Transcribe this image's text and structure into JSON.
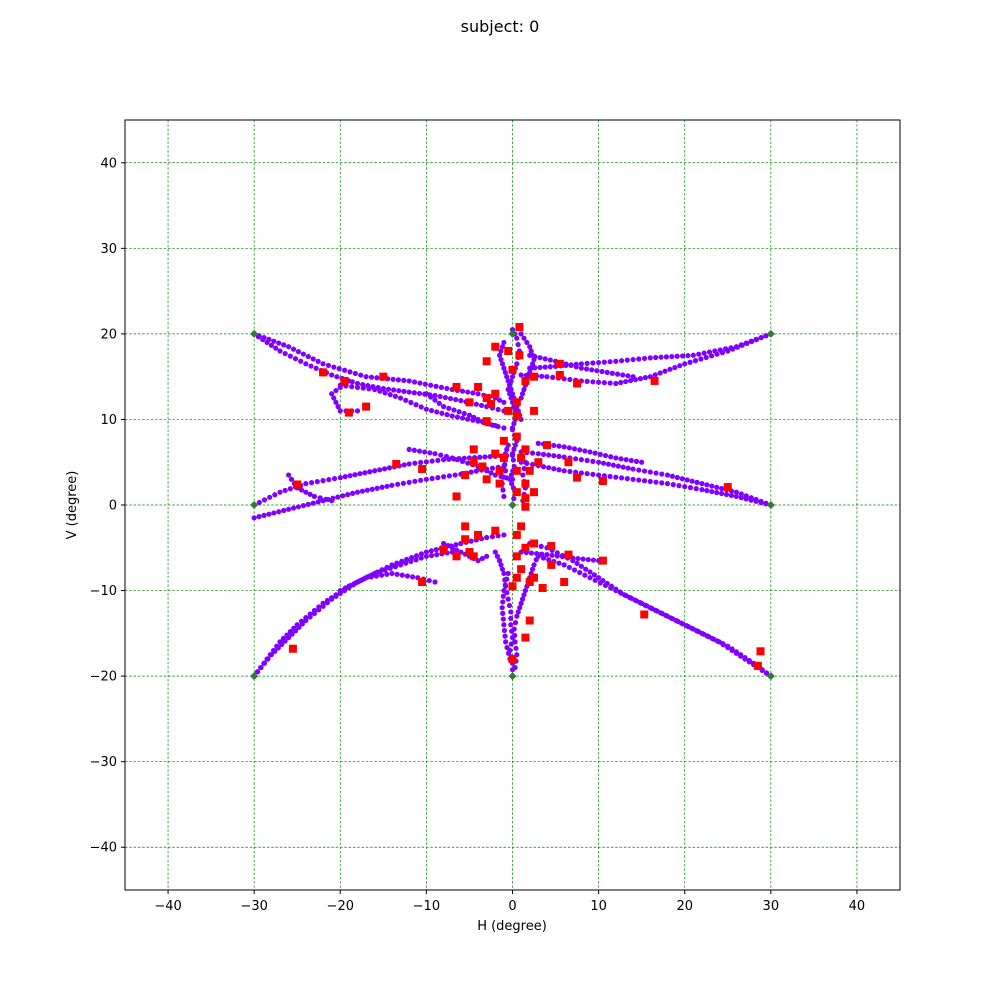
{
  "figure": {
    "title": "subject: 0"
  },
  "chart_data": {
    "type": "scatter",
    "title": "subject: 0",
    "xlabel": "H (degree)",
    "ylabel": "V (degree)",
    "xlim": [
      -45,
      45
    ],
    "ylim": [
      -45,
      45
    ],
    "xticks": [
      -40,
      -30,
      -20,
      -10,
      0,
      10,
      20,
      30,
      40
    ],
    "yticks": [
      -40,
      -30,
      -20,
      -10,
      0,
      10,
      20,
      30,
      40
    ],
    "grid": true,
    "grid_color": "#008000",
    "legend": "none",
    "colors": {
      "gaze": "#8000ff",
      "fixation": "#ff0000",
      "target": "#2e7d32"
    },
    "targets": [
      [
        -30,
        20
      ],
      [
        0,
        20
      ],
      [
        30,
        20
      ],
      [
        -30,
        0
      ],
      [
        0,
        0
      ],
      [
        30,
        0
      ],
      [
        -30,
        -20
      ],
      [
        0,
        -20
      ],
      [
        30,
        -20
      ]
    ],
    "gaze_paths": [
      [
        [
          -30,
          20
        ],
        [
          -26,
          18.5
        ],
        [
          -22,
          16.5
        ],
        [
          -17,
          15
        ],
        [
          -12,
          14.5
        ],
        [
          -7,
          13.5
        ],
        [
          -4,
          13
        ],
        [
          -2,
          12.5
        ],
        [
          -1,
          12
        ]
      ],
      [
        [
          -30,
          20
        ],
        [
          -27,
          18
        ],
        [
          -24,
          16.5
        ],
        [
          -21,
          15.2
        ],
        [
          -18,
          14.2
        ],
        [
          -15,
          13.6
        ],
        [
          -12,
          13.2
        ],
        [
          -9,
          12.8
        ],
        [
          -6,
          12.2
        ],
        [
          -3,
          11.5
        ],
        [
          -1,
          11
        ]
      ],
      [
        [
          -19,
          14.5
        ],
        [
          -21,
          13
        ],
        [
          -20,
          11
        ],
        [
          -18,
          11
        ]
      ],
      [
        [
          -10,
          13
        ],
        [
          -8,
          11.5
        ],
        [
          -5,
          10.5
        ],
        [
          -3,
          9.5
        ],
        [
          -1,
          9
        ]
      ],
      [
        [
          -20,
          14
        ],
        [
          -16,
          13.5
        ],
        [
          -13,
          12.5
        ],
        [
          -10,
          11.2
        ],
        [
          -7,
          10.4
        ],
        [
          -4,
          9.8
        ],
        [
          -2,
          9.3
        ]
      ],
      [
        [
          30,
          20
        ],
        [
          26,
          18.5
        ],
        [
          21,
          17.5
        ],
        [
          16,
          17.2
        ],
        [
          12,
          16.8
        ],
        [
          8,
          16.5
        ],
        [
          5,
          16.2
        ],
        [
          2,
          16
        ]
      ],
      [
        [
          30,
          20
        ],
        [
          25,
          18
        ],
        [
          20,
          16.5
        ],
        [
          16,
          15
        ],
        [
          12,
          14.2
        ],
        [
          8,
          14.5
        ],
        [
          4,
          15
        ],
        [
          1,
          15.2
        ]
      ],
      [
        [
          2,
          17.5
        ],
        [
          5,
          16.8
        ],
        [
          8,
          16
        ],
        [
          11,
          15.5
        ],
        [
          14,
          15
        ]
      ],
      [
        [
          0,
          20.5
        ],
        [
          0.5,
          19.5
        ],
        [
          0.8,
          18
        ],
        [
          0.5,
          16.5
        ],
        [
          0,
          15
        ],
        [
          -0.5,
          13.5
        ],
        [
          0,
          12
        ],
        [
          0.5,
          10.5
        ],
        [
          0,
          9
        ]
      ],
      [
        [
          -1,
          19
        ],
        [
          -1.5,
          17.5
        ],
        [
          -1,
          16
        ],
        [
          -0.5,
          14.5
        ],
        [
          0,
          13
        ],
        [
          0.5,
          11.5
        ],
        [
          1,
          10
        ]
      ],
      [
        [
          1,
          20
        ],
        [
          2,
          18.5
        ],
        [
          2.5,
          17
        ],
        [
          2,
          15.5
        ],
        [
          1.5,
          14
        ],
        [
          1,
          12.5
        ]
      ],
      [
        [
          -30,
          0
        ],
        [
          -27,
          1.5
        ],
        [
          -24,
          2.5
        ],
        [
          -20,
          3.2
        ],
        [
          -16,
          4
        ],
        [
          -12,
          4.8
        ],
        [
          -8,
          5.3
        ],
        [
          -5,
          5.5
        ],
        [
          -2,
          5.7
        ],
        [
          0,
          5.8
        ]
      ],
      [
        [
          -30,
          -1.5
        ],
        [
          -26,
          -0.5
        ],
        [
          -22,
          0.5
        ],
        [
          -18,
          1.5
        ],
        [
          -14,
          2.3
        ],
        [
          -10,
          3
        ],
        [
          -6,
          3.6
        ],
        [
          -3,
          4.2
        ],
        [
          -1,
          4.5
        ]
      ],
      [
        [
          -26,
          3.5
        ],
        [
          -25,
          2
        ],
        [
          -23,
          1
        ],
        [
          -21,
          0.5
        ]
      ],
      [
        [
          -12,
          6.5
        ],
        [
          -9,
          6
        ],
        [
          -7,
          5.5
        ],
        [
          -4,
          4.5
        ],
        [
          -2,
          3.5
        ],
        [
          0,
          3
        ]
      ],
      [
        [
          30,
          0
        ],
        [
          26,
          1.5
        ],
        [
          22,
          2.5
        ],
        [
          18,
          3.5
        ],
        [
          14,
          4.2
        ],
        [
          10,
          5
        ],
        [
          6,
          5.6
        ],
        [
          3,
          6
        ],
        [
          1,
          6.2
        ]
      ],
      [
        [
          30,
          0
        ],
        [
          26,
          1
        ],
        [
          22,
          1.8
        ],
        [
          18,
          2.5
        ],
        [
          14,
          3
        ],
        [
          10,
          3.5
        ],
        [
          6,
          4
        ],
        [
          3,
          4.6
        ],
        [
          1,
          5
        ]
      ],
      [
        [
          15,
          5
        ],
        [
          12,
          5.5
        ],
        [
          9,
          6.2
        ],
        [
          6,
          6.8
        ],
        [
          3,
          7.2
        ]
      ],
      [
        [
          0,
          0
        ],
        [
          0.3,
          1.5
        ],
        [
          -0.3,
          3
        ],
        [
          0.2,
          4.5
        ],
        [
          0,
          6
        ],
        [
          0.5,
          7.5
        ],
        [
          0,
          8.8
        ]
      ],
      [
        [
          -1,
          1
        ],
        [
          -1.2,
          2.5
        ],
        [
          -0.8,
          4
        ],
        [
          -1,
          5.5
        ],
        [
          -0.5,
          7
        ]
      ],
      [
        [
          1.2,
          0.5
        ],
        [
          1.5,
          2
        ],
        [
          1.2,
          3.5
        ],
        [
          1.5,
          5
        ]
      ],
      [
        [
          -30,
          -20
        ],
        [
          -28,
          -17.5
        ],
        [
          -26,
          -15.5
        ],
        [
          -24,
          -13.5
        ],
        [
          -21,
          -11
        ],
        [
          -18,
          -9
        ],
        [
          -14,
          -7
        ],
        [
          -10,
          -5.5
        ],
        [
          -6,
          -4.5
        ],
        [
          -3,
          -3.8
        ],
        [
          -1,
          -3.5
        ]
      ],
      [
        [
          -30,
          -20
        ],
        [
          -28.5,
          -18
        ],
        [
          -27,
          -16
        ],
        [
          -25,
          -14
        ],
        [
          -22,
          -11.5
        ],
        [
          -19,
          -9.5
        ],
        [
          -16,
          -8
        ],
        [
          -13,
          -7
        ],
        [
          -10,
          -6
        ],
        [
          -7,
          -5.5
        ]
      ],
      [
        [
          -20,
          -10
        ],
        [
          -17,
          -8.5
        ],
        [
          -14,
          -8
        ],
        [
          -11,
          -8.5
        ],
        [
          -9,
          -9
        ]
      ],
      [
        [
          -8,
          -4.5
        ],
        [
          -6,
          -5.5
        ],
        [
          -4,
          -6.5
        ],
        [
          -3,
          -6
        ]
      ],
      [
        [
          30,
          -20
        ],
        [
          28,
          -18.5
        ],
        [
          25,
          -16.5
        ],
        [
          22,
          -15
        ],
        [
          19,
          -13.5
        ],
        [
          16,
          -12
        ],
        [
          13,
          -10.5
        ],
        [
          10,
          -8.5
        ],
        [
          7,
          -6.5
        ],
        [
          4,
          -5
        ],
        [
          2,
          -4.5
        ]
      ],
      [
        [
          30,
          -20
        ],
        [
          27,
          -18
        ],
        [
          24,
          -16
        ],
        [
          21,
          -14.5
        ],
        [
          18,
          -13
        ],
        [
          15,
          -11.5
        ],
        [
          12,
          -10
        ],
        [
          9,
          -8.5
        ],
        [
          6,
          -7
        ],
        [
          3,
          -6
        ]
      ],
      [
        [
          10,
          -6.5
        ],
        [
          7,
          -6.2
        ],
        [
          4,
          -5.8
        ],
        [
          1,
          -5.5
        ]
      ],
      [
        [
          0,
          -20
        ],
        [
          0,
          -18.5
        ],
        [
          -0.3,
          -17
        ],
        [
          0,
          -15.5
        ],
        [
          -0.2,
          -14
        ],
        [
          -0.2,
          -12.5
        ],
        [
          -0.5,
          -11
        ],
        [
          -0.8,
          -9.5
        ],
        [
          -1,
          -8
        ],
        [
          -1.5,
          -6.5
        ],
        [
          -2,
          -5.5
        ]
      ],
      [
        [
          0.3,
          -19
        ],
        [
          0.5,
          -17.5
        ],
        [
          0.3,
          -16
        ],
        [
          0.2,
          -14.5
        ],
        [
          0.5,
          -13
        ],
        [
          1,
          -11.5
        ],
        [
          1.5,
          -10
        ],
        [
          2,
          -8.5
        ],
        [
          2.5,
          -7
        ],
        [
          3,
          -5.8
        ]
      ],
      [
        [
          -0.3,
          -18
        ],
        [
          -0.8,
          -16
        ],
        [
          -1,
          -14
        ],
        [
          -1.2,
          -12
        ],
        [
          -1,
          -10
        ],
        [
          -0.5,
          -8
        ]
      ]
    ],
    "fixations": [
      [
        0.8,
        20.8
      ],
      [
        -2,
        18.5
      ],
      [
        -0.5,
        18
      ],
      [
        0.8,
        17.5
      ],
      [
        -3,
        16.8
      ],
      [
        5.5,
        16.5
      ],
      [
        0,
        15.8
      ],
      [
        5.5,
        15.2
      ],
      [
        2.5,
        15
      ],
      [
        -15,
        15
      ],
      [
        -22,
        15.5
      ],
      [
        16.5,
        14.5
      ],
      [
        -19.5,
        14.5
      ],
      [
        -4,
        13.8
      ],
      [
        -2,
        13
      ],
      [
        1.5,
        14.5
      ],
      [
        7.5,
        14.2
      ],
      [
        -3,
        12.5
      ],
      [
        -5,
        12
      ],
      [
        -2.5,
        11.8
      ],
      [
        -6.5,
        13.8
      ],
      [
        -17,
        11.5
      ],
      [
        -19,
        10.8
      ],
      [
        0.5,
        12
      ],
      [
        -0.5,
        11
      ],
      [
        0.5,
        10.5
      ],
      [
        2.5,
        11
      ],
      [
        -3,
        9.8
      ],
      [
        0.5,
        8
      ],
      [
        -1,
        7.5
      ],
      [
        -4.5,
        6.5
      ],
      [
        4,
        7
      ],
      [
        1.5,
        6.5
      ],
      [
        -2,
        6
      ],
      [
        -1,
        5.5
      ],
      [
        1,
        5.5
      ],
      [
        -4.5,
        5
      ],
      [
        6.5,
        5
      ],
      [
        3,
        5
      ],
      [
        -3.5,
        4.5
      ],
      [
        -1.5,
        4
      ],
      [
        0.5,
        4
      ],
      [
        2,
        4
      ],
      [
        -5.5,
        3.5
      ],
      [
        -3,
        3
      ],
      [
        -1.5,
        2.5
      ],
      [
        1.5,
        2.5
      ],
      [
        -13.5,
        4.8
      ],
      [
        -10.5,
        4.2
      ],
      [
        7.5,
        3.2
      ],
      [
        10.5,
        2.8
      ],
      [
        -25,
        2.4
      ],
      [
        25,
        2.1
      ],
      [
        0.5,
        1.5
      ],
      [
        2.5,
        1.5
      ],
      [
        -6.5,
        1
      ],
      [
        1.5,
        0.8
      ],
      [
        1.5,
        -0.2
      ],
      [
        1,
        -2.5
      ],
      [
        -5.5,
        -2.5
      ],
      [
        -4,
        -3.5
      ],
      [
        -2,
        -3
      ],
      [
        0.5,
        -3.5
      ],
      [
        -5.5,
        -4
      ],
      [
        2.5,
        -4.5
      ],
      [
        4.5,
        -4.8
      ],
      [
        -8,
        -5.2
      ],
      [
        -5,
        -5.5
      ],
      [
        1.5,
        -5
      ],
      [
        -4.5,
        -6
      ],
      [
        -6.5,
        -6
      ],
      [
        0.5,
        -6
      ],
      [
        6.5,
        -5.8
      ],
      [
        10.5,
        -6.5
      ],
      [
        4.5,
        -7
      ],
      [
        1,
        -7.5
      ],
      [
        0.5,
        -8.5
      ],
      [
        2.5,
        -8.5
      ],
      [
        2,
        -9
      ],
      [
        3.5,
        -9.7
      ],
      [
        -10.5,
        -9
      ],
      [
        6,
        -9
      ],
      [
        0,
        -9.5
      ],
      [
        15.3,
        -12.8
      ],
      [
        2,
        -13.5
      ],
      [
        1.5,
        -15.5
      ],
      [
        -25.5,
        -16.8
      ],
      [
        28.8,
        -17.1
      ],
      [
        0,
        -18
      ],
      [
        28.5,
        -18.8
      ]
    ]
  }
}
